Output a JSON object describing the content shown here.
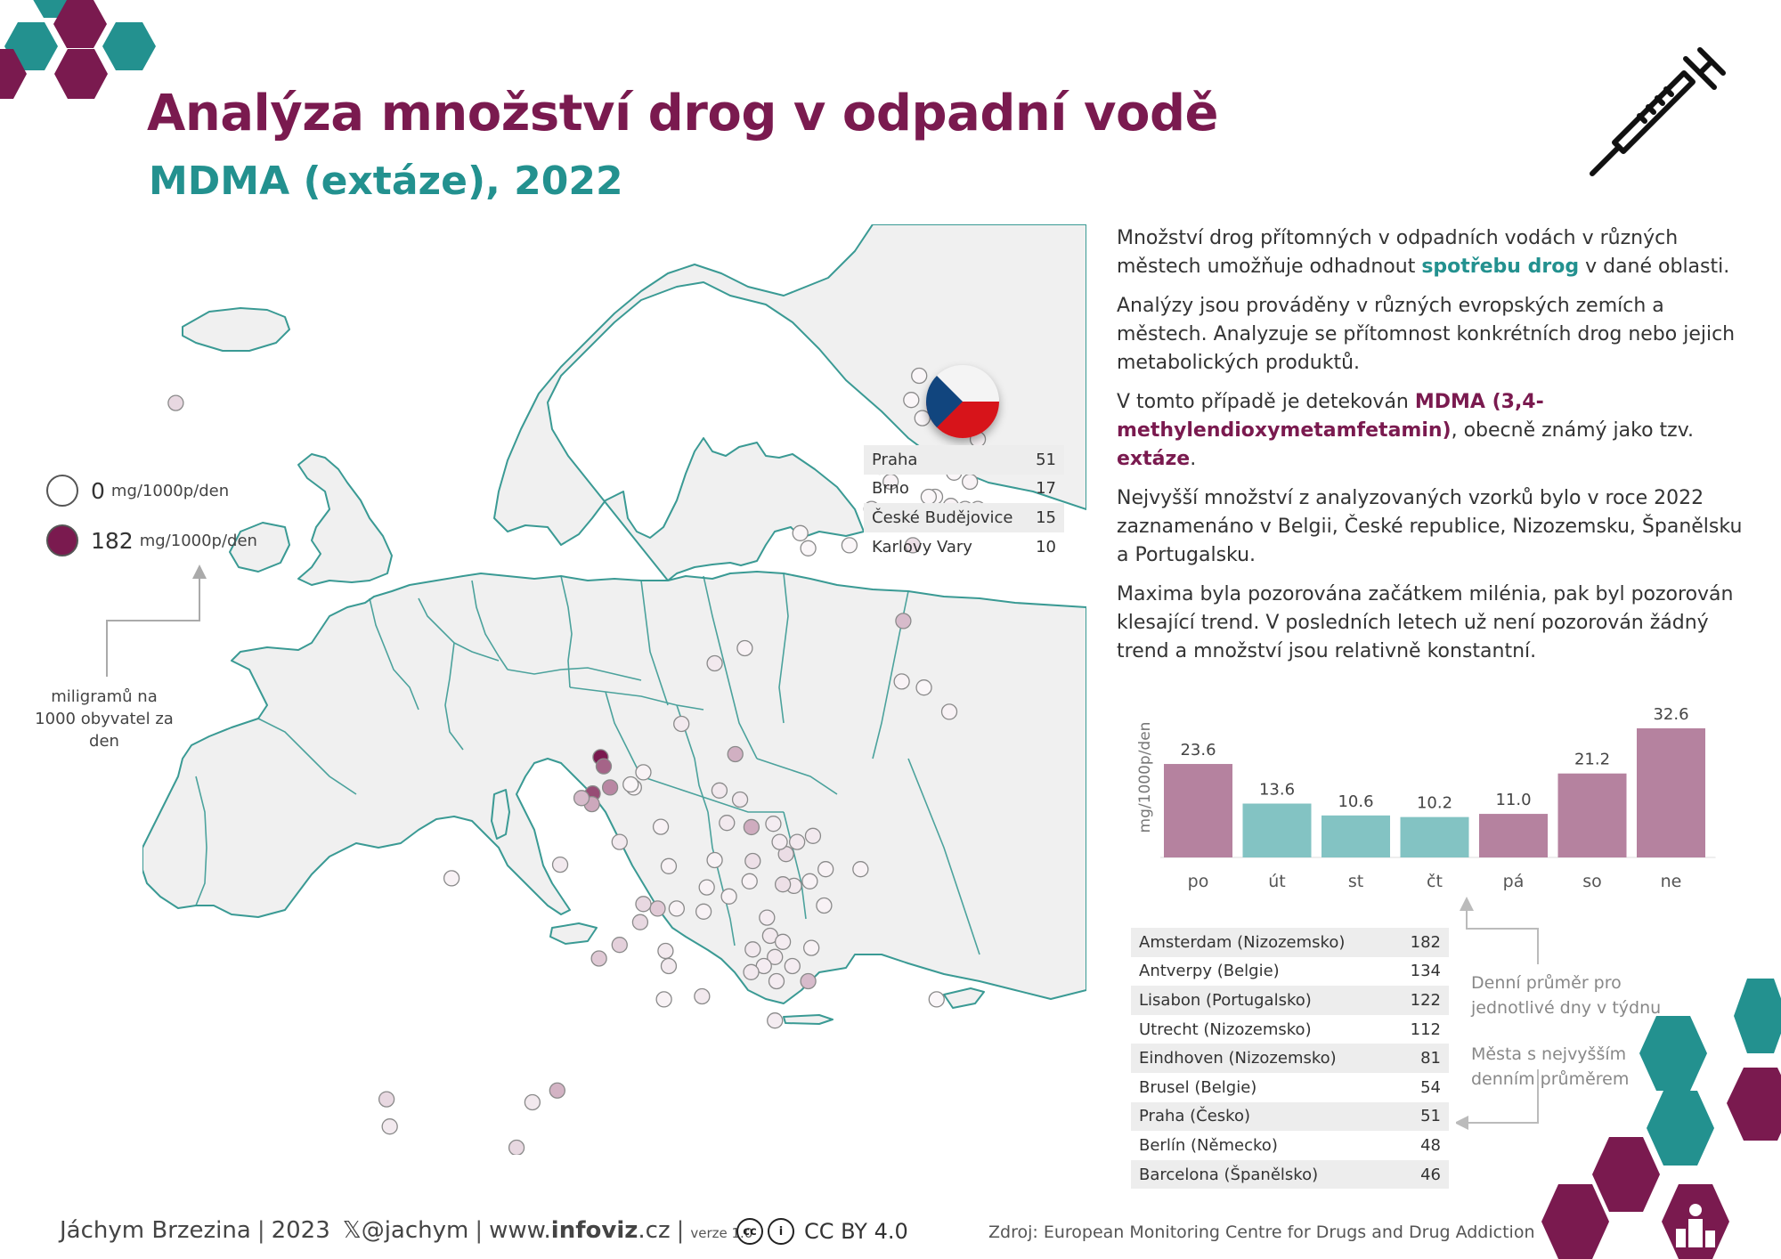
{
  "title": "Analýza množství drog v odpadní vodě",
  "subtitle": "MDMA (extáze), 2022",
  "colors": {
    "purple": "#7a1a4f",
    "teal": "#23918f",
    "bar_weekend": "#b5829f",
    "bar_weekday": "#83c3c3",
    "map_land": "#f0f0f0",
    "map_border": "#3a9a94"
  },
  "icons": {
    "corner_top_left": "hexagon-cluster-icon",
    "corner_top_right": "syringe-icon",
    "corner_bottom_right": "infoviz-logo-icon"
  },
  "legend": {
    "min_value": "0",
    "max_value": "182",
    "unit": "mg/1000p/den",
    "note": "miligramů na 1000 obyvatel za den"
  },
  "cz_table": [
    {
      "city": "Praha",
      "value": "51"
    },
    {
      "city": "Brno",
      "value": "17"
    },
    {
      "city": "České Budějovice",
      "value": "15"
    },
    {
      "city": "Karlovy Vary",
      "value": "10"
    }
  ],
  "paragraphs": {
    "p1_a": "Množství drog přítomných v odpadních vodách v různých městech umožňuje odhadnout ",
    "p1_b": "spotřebu drog",
    "p1_c": " v dané oblasti.",
    "p2": "Analýzy jsou prováděny v různých evropských zemích a městech. Analyzuje se přítomnost konkrétních drog nebo jejich metabolických produktů.",
    "p3_a": "V tomto případě je detekován ",
    "p3_b": "MDMA (3,4-methylendioxymetamfetamin)",
    "p3_c": ", obecně známý jako tzv. ",
    "p3_d": "extáze",
    "p3_e": ".",
    "p4": "Nejvyšší množství z analyzovaných vzorků bylo v roce 2022 zaznamenáno v Belgii, České republice, Nizozemsku, Španělsku a Portugalsku.",
    "p5": "Maxima byla pozorována začátkem milénia, pak byl pozorován klesající trend. V posledních letech už není pozorován žádný trend a množství jsou relativně konstantní."
  },
  "chart_data": {
    "type": "bar",
    "ylabel": "mg/1000p/den",
    "categories": [
      "po",
      "út",
      "st",
      "čt",
      "pá",
      "so",
      "ne"
    ],
    "values": [
      23.6,
      13.6,
      10.6,
      10.2,
      11.0,
      21.2,
      32.6
    ],
    "value_labels": [
      "23.6",
      "13.6",
      "10.6",
      "10.2",
      "11.0",
      "21.2",
      "32.6"
    ],
    "weekend_highlight": [
      true,
      false,
      false,
      false,
      true,
      true,
      true
    ],
    "ylim": [
      0,
      32.6
    ],
    "grid": false
  },
  "top_cities": [
    {
      "city": "Amsterdam (Nizozemsko)",
      "value": "182"
    },
    {
      "city": "Antverpy (Belgie)",
      "value": "134"
    },
    {
      "city": "Lisabon (Portugalsko)",
      "value": "122"
    },
    {
      "city": "Utrecht (Nizozemsko)",
      "value": "112"
    },
    {
      "city": "Eindhoven (Nizozemsko)",
      "value": "81"
    },
    {
      "city": "Brusel (Belgie)",
      "value": "54"
    },
    {
      "city": "Praha (Česko)",
      "value": "51"
    },
    {
      "city": "Berlín (Německo)",
      "value": "48"
    },
    {
      "city": "Barcelona (Španělsko)",
      "value": "46"
    }
  ],
  "notes": {
    "days_1": "Denní průměr pro",
    "days_2": "jednotlivé dny v týdnu",
    "cities_1": "Města s nejvyšším",
    "cities_2": "denním průměrem"
  },
  "footer": {
    "author": "Jáchym Brzezina",
    "year": "2023",
    "handle": "@jachym",
    "site_prefix": "www.",
    "site_bold": "infoviz",
    "site_suffix": ".cz",
    "version": "verze 1.0",
    "license": "CC BY 4.0",
    "source": "Zdroj: European Monitoring Centre for Drugs and Drug Addiction"
  },
  "map_points": [
    {
      "lon": -21.9,
      "lat": 64.1,
      "v": 20
    },
    {
      "lon": 25.0,
      "lat": 65.0,
      "v": 3
    },
    {
      "lon": 24.5,
      "lat": 64.2,
      "v": 3
    },
    {
      "lon": 25.2,
      "lat": 63.6,
      "v": 3
    },
    {
      "lon": 28.7,
      "lat": 62.9,
      "v": 5
    },
    {
      "lon": 29.6,
      "lat": 62.3,
      "v": 5
    },
    {
      "lon": 22.5,
      "lat": 62.0,
      "v": 3
    },
    {
      "lon": 27.2,
      "lat": 61.8,
      "v": 3
    },
    {
      "lon": 28.2,
      "lat": 61.5,
      "v": 5
    },
    {
      "lon": 23.2,
      "lat": 61.5,
      "v": 5
    },
    {
      "lon": 26.0,
      "lat": 61.0,
      "v": 3
    },
    {
      "lon": 25.6,
      "lat": 61.0,
      "v": 3
    },
    {
      "lon": 22.0,
      "lat": 60.6,
      "v": 5
    },
    {
      "lon": 27.0,
      "lat": 60.7,
      "v": 5
    },
    {
      "lon": 27.9,
      "lat": 60.6,
      "v": 3
    },
    {
      "lon": 24.7,
      "lat": 60.3,
      "v": 3
    },
    {
      "lon": 22.3,
      "lat": 60.4,
      "v": 3
    },
    {
      "lon": 25.0,
      "lat": 60.2,
      "v": 25
    },
    {
      "lon": 26.7,
      "lat": 60.3,
      "v": 3
    },
    {
      "lon": 28.7,
      "lat": 60.6,
      "v": 3
    },
    {
      "lon": 17.5,
      "lat": 59.8,
      "v": 3
    },
    {
      "lon": 18.0,
      "lat": 59.3,
      "v": 3
    },
    {
      "lon": 20.6,
      "lat": 59.4,
      "v": 3
    },
    {
      "lon": 24.6,
      "lat": 59.4,
      "v": 15
    },
    {
      "lon": 14.0,
      "lat": 56.0,
      "v": 5
    },
    {
      "lon": 12.1,
      "lat": 55.5,
      "v": 10
    },
    {
      "lon": 25.3,
      "lat": 54.7,
      "v": 3
    },
    {
      "lon": 24.0,
      "lat": 56.9,
      "v": 40
    },
    {
      "lon": 23.9,
      "lat": 54.9,
      "v": 5
    },
    {
      "lon": 26.9,
      "lat": 53.9,
      "v": 5
    },
    {
      "lon": 4.9,
      "lat": 52.4,
      "v": 182
    },
    {
      "lon": 5.1,
      "lat": 52.1,
      "v": 112
    },
    {
      "lon": 5.5,
      "lat": 51.4,
      "v": 81
    },
    {
      "lon": 4.4,
      "lat": 51.2,
      "v": 134
    },
    {
      "lon": 4.35,
      "lat": 50.85,
      "v": 54
    },
    {
      "lon": 3.7,
      "lat": 51.05,
      "v": 40
    },
    {
      "lon": 6.1,
      "lat": 49.6,
      "v": 10
    },
    {
      "lon": 13.4,
      "lat": 52.5,
      "v": 48
    },
    {
      "lon": 10.0,
      "lat": 53.5,
      "v": 10
    },
    {
      "lon": 7.0,
      "lat": 51.4,
      "v": 5
    },
    {
      "lon": 8.7,
      "lat": 50.1,
      "v": 5
    },
    {
      "lon": 11.6,
      "lat": 48.1,
      "v": 5
    },
    {
      "lon": 12.4,
      "lat": 51.3,
      "v": 10
    },
    {
      "lon": 13.7,
      "lat": 51.0,
      "v": 10
    },
    {
      "lon": 9.2,
      "lat": 48.8,
      "v": 5
    },
    {
      "lon": 12.1,
      "lat": 49.0,
      "v": 5
    },
    {
      "lon": 6.8,
      "lat": 51.5,
      "v": 3
    },
    {
      "lon": 7.6,
      "lat": 51.9,
      "v": 5
    },
    {
      "lon": 14.42,
      "lat": 50.09,
      "v": 51
    },
    {
      "lon": 16.6,
      "lat": 49.2,
      "v": 17
    },
    {
      "lon": 14.5,
      "lat": 48.97,
      "v": 15
    },
    {
      "lon": 12.87,
      "lat": 50.23,
      "v": 10
    },
    {
      "lon": 17.3,
      "lat": 49.6,
      "v": 10
    },
    {
      "lon": 18.3,
      "lat": 49.8,
      "v": 10
    },
    {
      "lon": 15.8,
      "lat": 50.2,
      "v": 8
    },
    {
      "lon": 16.2,
      "lat": 49.6,
      "v": 8
    },
    {
      "lon": 17.1,
      "lat": 48.15,
      "v": 10
    },
    {
      "lon": 19.1,
      "lat": 48.7,
      "v": 5
    },
    {
      "lon": 21.3,
      "lat": 48.7,
      "v": 5
    },
    {
      "lon": 18.1,
      "lat": 48.3,
      "v": 5
    },
    {
      "lon": 19.0,
      "lat": 47.5,
      "v": 5
    },
    {
      "lon": 18.2,
      "lat": 46.1,
      "v": 5
    },
    {
      "lon": 16.4,
      "lat": 48.2,
      "v": 15
    },
    {
      "lon": 15.4,
      "lat": 47.1,
      "v": 8
    },
    {
      "lon": 14.3,
      "lat": 48.3,
      "v": 5
    },
    {
      "lon": 13.0,
      "lat": 47.8,
      "v": 5
    },
    {
      "lon": 11.4,
      "lat": 47.3,
      "v": 5
    },
    {
      "lon": 9.7,
      "lat": 47.4,
      "v": 5
    },
    {
      "lon": 14.5,
      "lat": 46.05,
      "v": 10
    },
    {
      "lon": 15.6,
      "lat": 46.5,
      "v": 10
    },
    {
      "lon": 15.9,
      "lat": 45.8,
      "v": 10
    },
    {
      "lon": 16.4,
      "lat": 46.3,
      "v": 8
    },
    {
      "lon": 17.0,
      "lat": 45.5,
      "v": 8
    },
    {
      "lon": 15.2,
      "lat": 45.5,
      "v": 8
    },
    {
      "lon": 16.0,
      "lat": 45.0,
      "v": 8
    },
    {
      "lon": 18.0,
      "lat": 45.0,
      "v": 40
    },
    {
      "lon": 14.4,
      "lat": 45.3,
      "v": 10
    },
    {
      "lon": 15.9,
      "lat": 43.7,
      "v": 8
    },
    {
      "lon": 8.5,
      "lat": 47.4,
      "v": 30
    },
    {
      "lon": 7.4,
      "lat": 46.95,
      "v": 20
    },
    {
      "lon": 6.1,
      "lat": 46.2,
      "v": 25
    },
    {
      "lon": 9.0,
      "lat": 46.0,
      "v": 10
    },
    {
      "lon": 7.6,
      "lat": 47.55,
      "v": 20
    },
    {
      "lon": 9.2,
      "lat": 45.5,
      "v": 10
    },
    {
      "lon": 11.3,
      "lat": 44.5,
      "v": 10
    },
    {
      "lon": 8.9,
      "lat": 44.4,
      "v": 5
    },
    {
      "lon": 4.8,
      "lat": 45.75,
      "v": 30
    },
    {
      "lon": 2.35,
      "lat": 48.85,
      "v": 10
    },
    {
      "lon": -4.5,
      "lat": 48.4,
      "v": 5
    },
    {
      "lon": -8.6,
      "lat": 41.1,
      "v": 20
    },
    {
      "lon": -9.14,
      "lat": 38.72,
      "v": 122
    },
    {
      "lon": -9.0,
      "lat": 38.6,
      "v": 40
    },
    {
      "lon": -8.4,
      "lat": 40.2,
      "v": 10
    },
    {
      "lon": 2.17,
      "lat": 41.39,
      "v": 46
    },
    {
      "lon": 0.6,
      "lat": 41.0,
      "v": 10
    },
    {
      "lon": -0.4,
      "lat": 39.5,
      "v": 20
    },
    {
      "lon": 26.1,
      "lat": 44.4,
      "v": 3
    },
    {
      "lon": 23.7,
      "lat": 37.98,
      "v": 3
    },
    {
      "lon": 33.4,
      "lat": 35.2,
      "v": 3
    },
    {
      "lon": 33.0,
      "lat": 34.7,
      "v": 3
    },
    {
      "lon": 32.4,
      "lat": 34.8,
      "v": 3
    },
    {
      "lon": 33.6,
      "lat": 34.9,
      "v": 3
    }
  ]
}
